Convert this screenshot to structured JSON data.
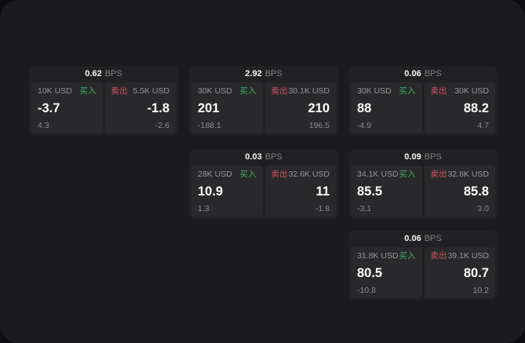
{
  "labels": {
    "buy": "买入",
    "sell": "卖出",
    "bps_unit": "BPS"
  },
  "colors": {
    "panel_bg": "#1b1b1d",
    "card_bg": "#212123",
    "pane_bg": "#29292b",
    "buy_green": "#3ead5f",
    "sell_red": "#d44f63",
    "muted_text": "#8b8b90",
    "value_text": "#ffffff"
  },
  "cards": [
    {
      "bps": "0.62",
      "buy": {
        "amount": "10K USD",
        "value": "-3.7",
        "delta": "4.3"
      },
      "sell": {
        "amount": "5.5K USD",
        "value": "-1.8",
        "delta": "-2.6"
      }
    },
    {
      "bps": "2.92",
      "buy": {
        "amount": "30K USD",
        "value": "201",
        "delta": "-188.1"
      },
      "sell": {
        "amount": "30.1K USD",
        "value": "210",
        "delta": "196.5"
      }
    },
    {
      "bps": "0.06",
      "buy": {
        "amount": "30K USD",
        "value": "88",
        "delta": "-4.9"
      },
      "sell": {
        "amount": "30K USD",
        "value": "88.2",
        "delta": "4.7"
      }
    },
    {
      "bps": "0.03",
      "buy": {
        "amount": "28K USD",
        "value": "10.9",
        "delta": "1.3"
      },
      "sell": {
        "amount": "32.6K USD",
        "value": "11",
        "delta": "-1.8"
      }
    },
    {
      "bps": "0.09",
      "buy": {
        "amount": "34.1K USD",
        "value": "85.5",
        "delta": "-3.1"
      },
      "sell": {
        "amount": "32.8K USD",
        "value": "85.8",
        "delta": "3.0"
      }
    },
    {
      "bps": "0.06",
      "buy": {
        "amount": "31.8K USD",
        "value": "80.5",
        "delta": "-10.8"
      },
      "sell": {
        "amount": "39.1K USD",
        "value": "80.7",
        "delta": "10.2"
      }
    }
  ]
}
